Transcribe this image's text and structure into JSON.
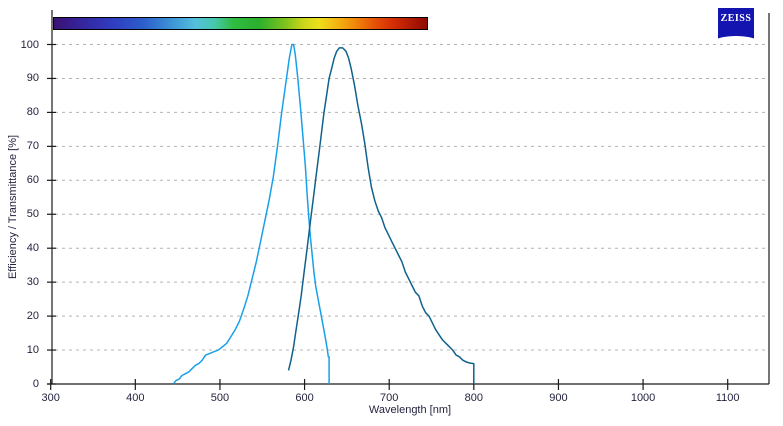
{
  "header": {
    "logo_text": "ZEISS",
    "logo_color": "#1414B0"
  },
  "colors": {
    "background": "#ffffff",
    "axis": "#1a1a1a",
    "grid": "#b4b4b4",
    "text": "#23233F"
  },
  "chart_data": {
    "type": "line",
    "title": "",
    "xlabel": "Wavelength [nm]",
    "ylabel": "Efficiency / Transmittance [%]",
    "xlim": [
      300,
      1150
    ],
    "ylim": [
      0,
      100
    ],
    "x_ticks": [
      300,
      400,
      500,
      600,
      700,
      800,
      900,
      1000,
      1100
    ],
    "y_ticks": [
      0,
      10,
      20,
      30,
      40,
      50,
      60,
      70,
      80,
      90,
      100
    ],
    "grid": "horizontal-dashed",
    "legend_position": "none",
    "series": [
      {
        "name": "light-blue-curve",
        "color": "#18A0E8",
        "points": [
          [
            445,
            0
          ],
          [
            448,
            1
          ],
          [
            452,
            1.5
          ],
          [
            455,
            2.5
          ],
          [
            459,
            3
          ],
          [
            463,
            3.5
          ],
          [
            467,
            4.5
          ],
          [
            471,
            5.5
          ],
          [
            475,
            6
          ],
          [
            479,
            7
          ],
          [
            483,
            8.5
          ],
          [
            488,
            9
          ],
          [
            493,
            9.5
          ],
          [
            498,
            10
          ],
          [
            503,
            11
          ],
          [
            508,
            12
          ],
          [
            513,
            14
          ],
          [
            518,
            16
          ],
          [
            523,
            18.5
          ],
          [
            528,
            22
          ],
          [
            533,
            26
          ],
          [
            538,
            31
          ],
          [
            543,
            36
          ],
          [
            548,
            42
          ],
          [
            553,
            48
          ],
          [
            558,
            54
          ],
          [
            563,
            61
          ],
          [
            568,
            70
          ],
          [
            573,
            80
          ],
          [
            578,
            89
          ],
          [
            582,
            96
          ],
          [
            585,
            100
          ],
          [
            587,
            100
          ],
          [
            589,
            97
          ],
          [
            592,
            90
          ],
          [
            595,
            82
          ],
          [
            598,
            73
          ],
          [
            601,
            64
          ],
          [
            603,
            56
          ],
          [
            605,
            49
          ],
          [
            607,
            43
          ],
          [
            609,
            38
          ],
          [
            611,
            33
          ],
          [
            613,
            29
          ],
          [
            616,
            25
          ],
          [
            619,
            21
          ],
          [
            622,
            17
          ],
          [
            625,
            13
          ],
          [
            627,
            10
          ],
          [
            628,
            8
          ],
          [
            629,
            8
          ],
          [
            629,
            0
          ]
        ]
      },
      {
        "name": "dark-blue-curve",
        "color": "#10628C",
        "points": [
          [
            581,
            4
          ],
          [
            584,
            7
          ],
          [
            587,
            11
          ],
          [
            590,
            16
          ],
          [
            593,
            21
          ],
          [
            596,
            26
          ],
          [
            599,
            32
          ],
          [
            602,
            38
          ],
          [
            605,
            44
          ],
          [
            608,
            50
          ],
          [
            611,
            56
          ],
          [
            614,
            62
          ],
          [
            617,
            68
          ],
          [
            620,
            74
          ],
          [
            623,
            80
          ],
          [
            626,
            85
          ],
          [
            629,
            90
          ],
          [
            632,
            93
          ],
          [
            635,
            96
          ],
          [
            638,
            98
          ],
          [
            641,
            99
          ],
          [
            645,
            99
          ],
          [
            649,
            98
          ],
          [
            652,
            96
          ],
          [
            655,
            93
          ],
          [
            659,
            88
          ],
          [
            663,
            82
          ],
          [
            667,
            77
          ],
          [
            671,
            71
          ],
          [
            675,
            64
          ],
          [
            679,
            58
          ],
          [
            683,
            54
          ],
          [
            687,
            51
          ],
          [
            691,
            49
          ],
          [
            695,
            46
          ],
          [
            699,
            44
          ],
          [
            703,
            42
          ],
          [
            707,
            40
          ],
          [
            711,
            38
          ],
          [
            715,
            36
          ],
          [
            719,
            33
          ],
          [
            723,
            31
          ],
          [
            727,
            29
          ],
          [
            731,
            27
          ],
          [
            735,
            26
          ],
          [
            739,
            23
          ],
          [
            743,
            21
          ],
          [
            747,
            20
          ],
          [
            751,
            18
          ],
          [
            755,
            16
          ],
          [
            759,
            14.5
          ],
          [
            763,
            13
          ],
          [
            767,
            12
          ],
          [
            771,
            11
          ],
          [
            775,
            10
          ],
          [
            779,
            8.5
          ],
          [
            783,
            8
          ],
          [
            787,
            7
          ],
          [
            791,
            6.5
          ],
          [
            795,
            6.2
          ],
          [
            800,
            6
          ],
          [
            800,
            0
          ]
        ]
      }
    ],
    "spectrum_bar": {
      "x_range_nm": [
        300,
        745
      ],
      "stops": [
        {
          "pos": 0,
          "color": "#3a1173"
        },
        {
          "pos": 8,
          "color": "#3527a0"
        },
        {
          "pos": 16,
          "color": "#2f3ec2"
        },
        {
          "pos": 24,
          "color": "#2c5ecb"
        },
        {
          "pos": 32,
          "color": "#3e97d6"
        },
        {
          "pos": 38,
          "color": "#55c0dc"
        },
        {
          "pos": 43,
          "color": "#46c8ab"
        },
        {
          "pos": 48,
          "color": "#2fbb43"
        },
        {
          "pos": 55,
          "color": "#2cb02c"
        },
        {
          "pos": 62,
          "color": "#7fc21e"
        },
        {
          "pos": 67,
          "color": "#cdd71a"
        },
        {
          "pos": 71,
          "color": "#ecdf1c"
        },
        {
          "pos": 76,
          "color": "#f3b312"
        },
        {
          "pos": 81,
          "color": "#f08409"
        },
        {
          "pos": 86,
          "color": "#e55107"
        },
        {
          "pos": 91,
          "color": "#d42c05"
        },
        {
          "pos": 100,
          "color": "#8f0a00"
        }
      ]
    }
  }
}
